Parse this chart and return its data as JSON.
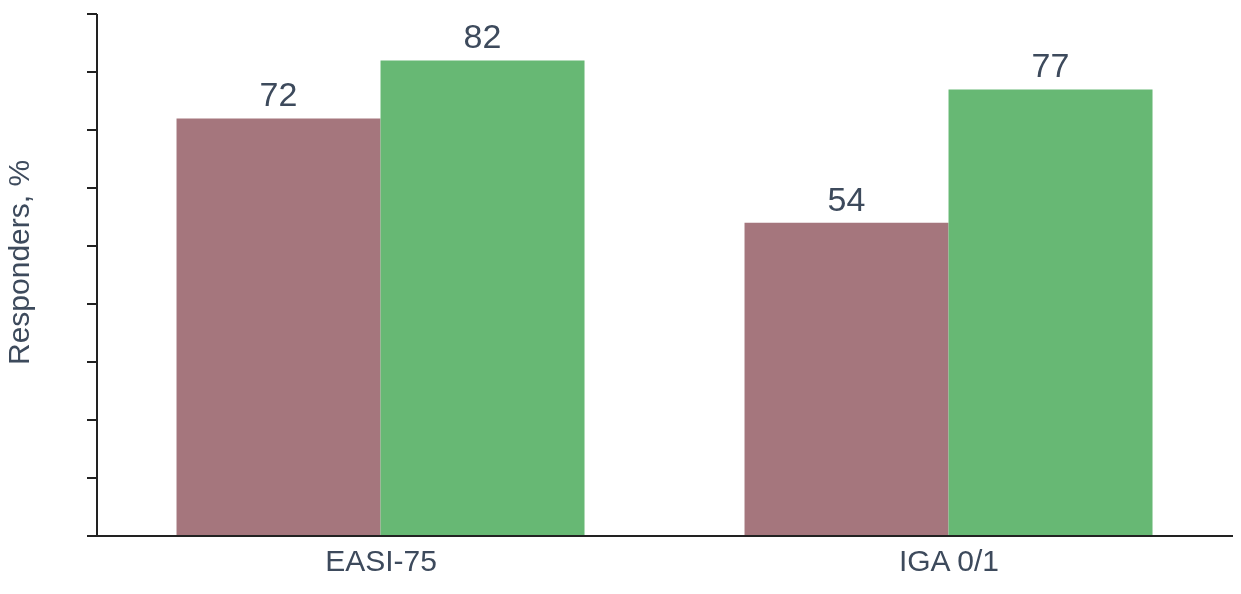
{
  "chart_data": {
    "type": "bar",
    "ylabel": "Responders, %",
    "categories": [
      "EASI-75",
      "IGA 0/1"
    ],
    "series": [
      {
        "color": "#a5767d",
        "values": [
          72,
          54
        ]
      },
      {
        "color": "#67b874",
        "values": [
          82,
          77
        ]
      }
    ],
    "ylim": [
      0,
      90
    ],
    "yticks": [
      {
        "value": 0,
        "label": null
      },
      {
        "value": 10,
        "label": null
      },
      {
        "value": 20,
        "label": null
      },
      {
        "value": 30,
        "label": null
      },
      {
        "value": 40,
        "label": null
      },
      {
        "value": 50,
        "label": null
      },
      {
        "value": 60,
        "label": null
      },
      {
        "value": 70,
        "label": null
      },
      {
        "value": 80,
        "label": null
      },
      {
        "value": 90,
        "label": null
      }
    ],
    "tick_labels": "x",
    "data_labels": true,
    "grid": false,
    "legend": false
  }
}
